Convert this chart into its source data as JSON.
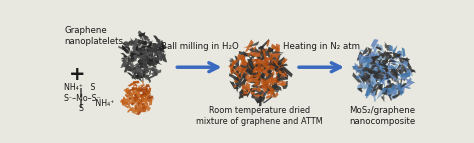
{
  "bg_color": "#e8e8e0",
  "labels": {
    "graphene": "Graphene\nnanoplatelets",
    "plus": "+",
    "ball_milling": "Ball milling in H₂O",
    "room_temp": "Room temperature dried\nmixture of graphene and ATTM",
    "heating": "Heating in N₂ atm",
    "product": "MoS₂/graphene\nnanocomposite"
  },
  "arrow_color": "#3a6abf",
  "text_color": "#1a1a1a",
  "graphene_color": "#3a3a3a",
  "graphene_color2": "#555555",
  "attm_color": "#b05010",
  "attm_color2": "#c86820",
  "mixed_dark": "#333333",
  "mixed_orange": "#b85515",
  "mos2_dark": "#404040",
  "mos2_blue": "#6688bb",
  "mos2_blue2": "#88aacc",
  "font_size": 6.2
}
